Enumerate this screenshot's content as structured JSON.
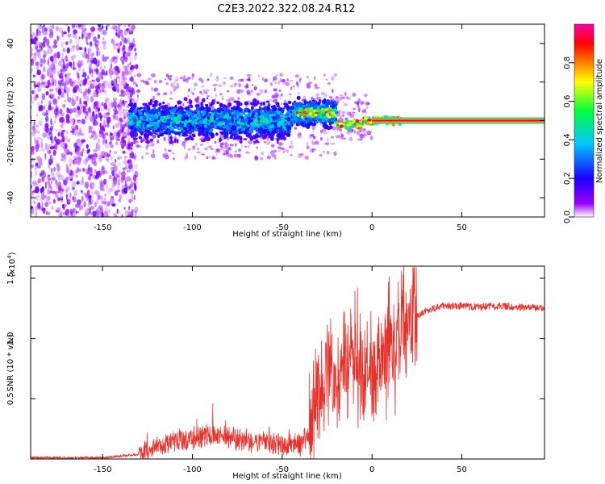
{
  "figure": {
    "title": "C2E3.2022.322.08.24.R12"
  },
  "chart_data": [
    {
      "type": "heatmap",
      "xlabel": "Height of straight line (km)",
      "ylabel": "Frequency (Hz)",
      "xlim": [
        -190,
        96
      ],
      "ylim": [
        -50,
        50
      ],
      "x_ticks": [
        -150,
        -100,
        -50,
        0,
        50
      ],
      "y_ticks": [
        -40,
        -20,
        0,
        20,
        40
      ],
      "colorbar": {
        "label": "Normalized spectral amplitude",
        "range": [
          0,
          1
        ],
        "ticks": [
          "0.0",
          "0.2",
          "0.4",
          "0.6",
          "0.8"
        ],
        "colors": [
          "#ffffff",
          "#9b00ff",
          "#1a00ff",
          "#00c8ff",
          "#00ff40",
          "#ffff00",
          "#ff8000",
          "#ff0000",
          "#ff00aa"
        ]
      },
      "features": {
        "noise_region_x": [
          -190,
          -135
        ],
        "broad_band_x": [
          -135,
          -20
        ],
        "narrow_line_start_x": 15,
        "line_frequency": 0
      }
    },
    {
      "type": "line",
      "xlabel": "Height of straight line (km)",
      "ylabel": "SNR (10 * v/v)",
      "yunit_exponent": "(x10",
      "yunit_exponent_power": "4",
      "yunit_close": ")",
      "xlim": [
        -190,
        96
      ],
      "ylim": [
        0,
        1.6
      ],
      "x_ticks": [
        -150,
        -100,
        -50,
        0,
        50
      ],
      "y_ticks": [
        "0.5",
        "1.0",
        "1.5"
      ],
      "series": [
        {
          "color": "#e8302a",
          "x": [
            -190,
            -150,
            -130,
            -120,
            -110,
            -100,
            -90,
            -80,
            -70,
            -60,
            -50,
            -40,
            -35,
            -30,
            -25,
            -20,
            -15,
            -10,
            -5,
            0,
            5,
            10,
            15,
            20,
            25,
            30,
            40,
            50,
            60,
            70,
            80,
            90,
            95
          ],
          "y": [
            0.01,
            0.01,
            0.04,
            0.1,
            0.15,
            0.17,
            0.2,
            0.18,
            0.15,
            0.13,
            0.12,
            0.12,
            0.2,
            0.6,
            0.75,
            0.65,
            0.8,
            0.9,
            0.75,
            0.75,
            0.85,
            0.95,
            1.0,
            1.1,
            1.18,
            1.23,
            1.27,
            1.27,
            1.26,
            1.27,
            1.26,
            1.26,
            1.25
          ]
        }
      ]
    }
  ]
}
